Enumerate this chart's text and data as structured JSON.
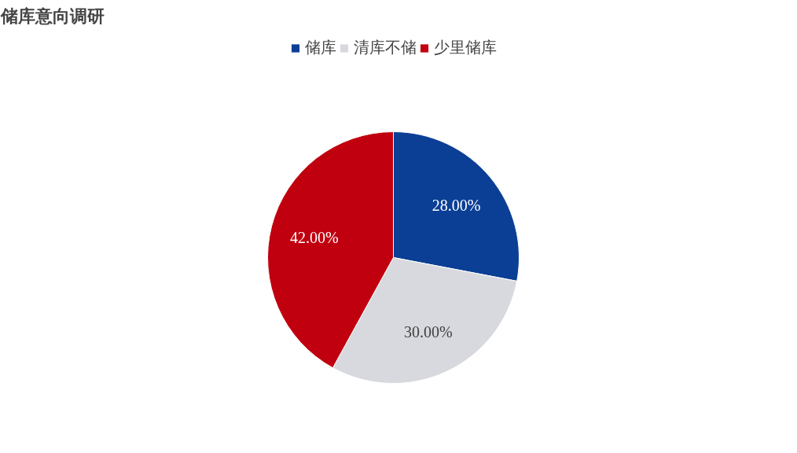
{
  "chart_data": {
    "type": "pie",
    "title": "储库意向调研",
    "categories": [
      "储库",
      "清库不储",
      "少里储库"
    ],
    "values": [
      28,
      30,
      42
    ],
    "colors": [
      "#0b3f96",
      "#d8d9de",
      "#c1000f"
    ],
    "value_labels": [
      "28.00%",
      "30.00%",
      "42.00%"
    ],
    "legend": "top"
  }
}
